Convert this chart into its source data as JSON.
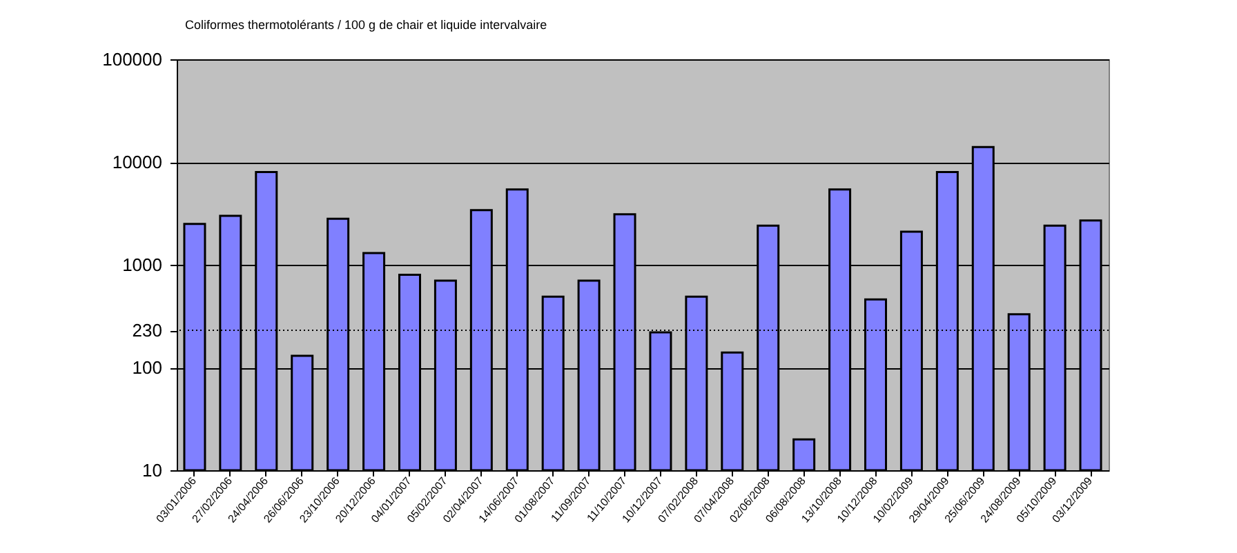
{
  "chart_data": {
    "type": "bar",
    "title": "Coliformes thermotolérants / 100 g de chair et liquide intervalvaire",
    "categories": [
      "03/01/2006",
      "27/02/2006",
      "24/04/2006",
      "26/06/2006",
      "23/10/2006",
      "20/12/2006",
      "04/01/2007",
      "05/02/2007",
      "02/04/2007",
      "14/06/2007",
      "01/08/2007",
      "11/09/2007",
      "11/10/2007",
      "10/12/2007",
      "07/02/2008",
      "07/04/2008",
      "02/06/2008",
      "06/08/2008",
      "13/10/2008",
      "10/12/2008",
      "10/02/2009",
      "29/04/2009",
      "25/06/2009",
      "24/08/2009",
      "05/10/2009",
      "03/12/2009"
    ],
    "values": [
      2500,
      3000,
      8000,
      130,
      2800,
      1300,
      800,
      700,
      3400,
      5400,
      490,
      700,
      3100,
      220,
      490,
      140,
      2400,
      20,
      5400,
      460,
      2100,
      8000,
      14000,
      330,
      2400,
      2700
    ],
    "color": "#8080ff",
    "log": true,
    "ylim": [
      10,
      100000
    ],
    "yticks": [
      10,
      100,
      230,
      1000,
      10000,
      100000
    ],
    "grid": "y",
    "ref_lines": [
      {
        "axis": "y",
        "value": 230,
        "line_style": "dotted"
      }
    ]
  }
}
